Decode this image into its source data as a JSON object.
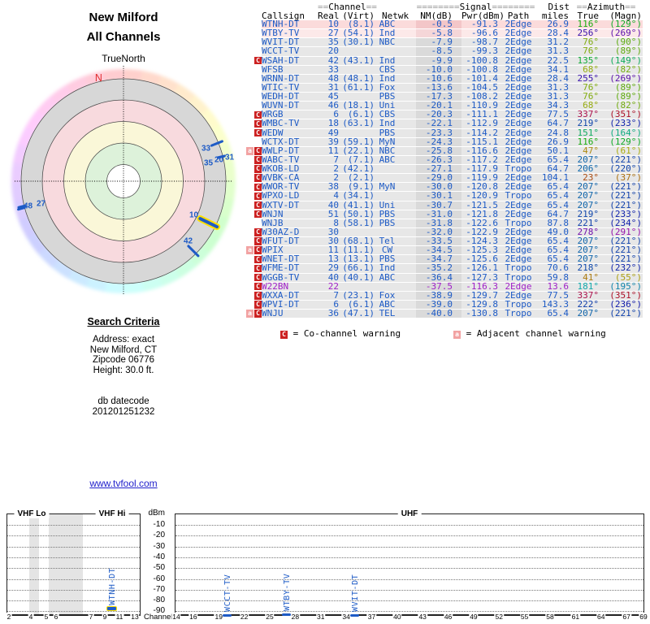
{
  "title": {
    "line1": "New Milford",
    "line2": "All Channels"
  },
  "radar": {
    "north_label": "TrueNorth",
    "magnetic_north_label": "N"
  },
  "search": {
    "heading": "Search Criteria",
    "lines": [
      "Address: exact",
      "New Milford, CT",
      "Zipcode 06776",
      "Height: 30.0 ft."
    ],
    "db_lines": [
      "db datecode",
      "201201251232"
    ]
  },
  "link": {
    "text": "www.tvfool.com"
  },
  "legend": {
    "co_symbol": "C",
    "co_text": "= Co-channel warning",
    "adj_symbol": "a",
    "adj_text": "= Adjacent channel warning"
  },
  "table": {
    "group_headers": {
      "channel": {
        "pre": "==",
        "word": "Channel",
        "post": "=="
      },
      "signal": {
        "pre": "========",
        "word": "Signal",
        "post": "========"
      },
      "dist": "Dist",
      "azimuth": {
        "pre": "==",
        "word": "Azimuth",
        "post": "=="
      }
    },
    "columns": {
      "callsign": "Callsign",
      "real": "Real",
      "virt": "(Virt)",
      "netwk": "Netwk",
      "nm": "NM(dB)",
      "pwr": "Pwr(dBm)",
      "path": "Path",
      "miles": "miles",
      "true": "True",
      "magn": "(Magn)"
    }
  },
  "colors": {
    "row_text": "#1E5BC6",
    "analog_text": "#A020C8",
    "row_bg": "#E7E7E7",
    "row_bg_nm": "#DADADA",
    "strong1_bg": "#FBDBDB",
    "strong1_bg_nm": "#F3C6C8",
    "strong2_bg": "#FCE9E9",
    "strong2_bg_nm": "#F5D6D8",
    "warn_c": "#CC2222",
    "warn_a": "#F2A2A2",
    "link": "#2222CC",
    "bar_blue": "#1E5BC6",
    "highlight": "#FFE000",
    "north_red": "#E03030"
  },
  "chart_data": [
    {
      "type": "table",
      "title": "channel list",
      "rows": [
        {
          "warn": "",
          "call": "WTNH-DT",
          "real": "10",
          "virt": "8.1",
          "net": "ABC",
          "nm": "-0.5",
          "pwr": "-91.3",
          "path": "2Edge",
          "mi": "26.9",
          "az": 116,
          "mag": 129,
          "bg": "s1"
        },
        {
          "warn": "",
          "call": "WTBY-TV",
          "real": "27",
          "virt": "54.1",
          "net": "Ind",
          "nm": "-5.8",
          "pwr": "-96.6",
          "path": "2Edge",
          "mi": "28.4",
          "az": 256,
          "mag": 269,
          "bg": "s2"
        },
        {
          "warn": "",
          "call": "WVIT-DT",
          "real": "35",
          "virt": "30.1",
          "net": "NBC",
          "nm": "-7.9",
          "pwr": "-98.7",
          "path": "2Edge",
          "mi": "31.2",
          "az": 76,
          "mag": 90
        },
        {
          "warn": "",
          "call": "WCCT-TV",
          "real": "20",
          "virt": "",
          "net": "",
          "nm": "-8.5",
          "pwr": "-99.3",
          "path": "2Edge",
          "mi": "31.3",
          "az": 76,
          "mag": 89
        },
        {
          "warn": "C",
          "call": "WSAH-DT",
          "real": "42",
          "virt": "43.1",
          "net": "Ind",
          "nm": "-9.9",
          "pwr": "-100.8",
          "path": "2Edge",
          "mi": "22.5",
          "az": 135,
          "mag": 149
        },
        {
          "warn": "",
          "call": "WFSB",
          "real": "33",
          "virt": "",
          "net": "CBS",
          "nm": "-10.0",
          "pwr": "-100.8",
          "path": "2Edge",
          "mi": "34.1",
          "az": 68,
          "mag": 82
        },
        {
          "warn": "",
          "call": "WRNN-DT",
          "real": "48",
          "virt": "48.1",
          "net": "Ind",
          "nm": "-10.6",
          "pwr": "-101.4",
          "path": "2Edge",
          "mi": "28.4",
          "az": 255,
          "mag": 269
        },
        {
          "warn": "",
          "call": "WTIC-TV",
          "real": "31",
          "virt": "61.1",
          "net": "Fox",
          "nm": "-13.6",
          "pwr": "-104.5",
          "path": "2Edge",
          "mi": "31.3",
          "az": 76,
          "mag": 89
        },
        {
          "warn": "",
          "call": "WEDH-DT",
          "real": "45",
          "virt": "",
          "net": "PBS",
          "nm": "-17.3",
          "pwr": "-108.2",
          "path": "2Edge",
          "mi": "31.3",
          "az": 76,
          "mag": 89
        },
        {
          "warn": "",
          "call": "WUVN-DT",
          "real": "46",
          "virt": "18.1",
          "net": "Uni",
          "nm": "-20.1",
          "pwr": "-110.9",
          "path": "2Edge",
          "mi": "34.3",
          "az": 68,
          "mag": 82
        },
        {
          "warn": "C",
          "call": "WRGB",
          "real": "6",
          "virt": "6.1",
          "net": "CBS",
          "nm": "-20.3",
          "pwr": "-111.1",
          "path": "2Edge",
          "mi": "77.5",
          "az": 337,
          "mag": 351
        },
        {
          "warn": "C",
          "call": "WMBC-TV",
          "real": "18",
          "virt": "63.1",
          "net": "Ind",
          "nm": "-22.1",
          "pwr": "-112.9",
          "path": "2Edge",
          "mi": "64.7",
          "az": 219,
          "mag": 233
        },
        {
          "warn": "C",
          "call": "WEDW",
          "real": "49",
          "virt": "",
          "net": "PBS",
          "nm": "-23.3",
          "pwr": "-114.2",
          "path": "2Edge",
          "mi": "24.8",
          "az": 151,
          "mag": 164
        },
        {
          "warn": "",
          "call": "WCTX-DT",
          "real": "39",
          "virt": "59.1",
          "net": "MyN",
          "nm": "-24.3",
          "pwr": "-115.1",
          "path": "2Edge",
          "mi": "26.9",
          "az": 116,
          "mag": 129
        },
        {
          "warn": "aC",
          "call": "WWLP-DT",
          "real": "11",
          "virt": "22.1",
          "net": "NBC",
          "nm": "-25.8",
          "pwr": "-116.6",
          "path": "2Edge",
          "mi": "50.1",
          "az": 47,
          "mag": 61
        },
        {
          "warn": "C",
          "call": "WABC-TV",
          "real": "7",
          "virt": "7.1",
          "net": "ABC",
          "nm": "-26.3",
          "pwr": "-117.2",
          "path": "2Edge",
          "mi": "65.4",
          "az": 207,
          "mag": 221
        },
        {
          "warn": "C",
          "call": "WKOB-LD",
          "real": "2",
          "virt": "42.1",
          "net": "",
          "nm": "-27.1",
          "pwr": "-117.9",
          "path": "Tropo",
          "mi": "64.7",
          "az": 206,
          "mag": 220
        },
        {
          "warn": "C",
          "call": "WVBK-CA",
          "real": "2",
          "virt": "2.1",
          "net": "",
          "nm": "-29.0",
          "pwr": "-119.9",
          "path": "2Edge",
          "mi": "104.1",
          "az": 23,
          "mag": 37
        },
        {
          "warn": "C",
          "call": "WWOR-TV",
          "real": "38",
          "virt": "9.1",
          "net": "MyN",
          "nm": "-30.0",
          "pwr": "-120.8",
          "path": "2Edge",
          "mi": "65.4",
          "az": 207,
          "mag": 221
        },
        {
          "warn": "C",
          "call": "WPXO-LD",
          "real": "4",
          "virt": "34.1",
          "net": "",
          "nm": "-30.1",
          "pwr": "-120.9",
          "path": "Tropo",
          "mi": "65.4",
          "az": 207,
          "mag": 221
        },
        {
          "warn": "C",
          "call": "WXTV-DT",
          "real": "40",
          "virt": "41.1",
          "net": "Uni",
          "nm": "-30.7",
          "pwr": "-121.5",
          "path": "2Edge",
          "mi": "65.4",
          "az": 207,
          "mag": 221
        },
        {
          "warn": "C",
          "call": "WNJN",
          "real": "51",
          "virt": "50.1",
          "net": "PBS",
          "nm": "-31.0",
          "pwr": "-121.8",
          "path": "2Edge",
          "mi": "64.7",
          "az": 219,
          "mag": 233
        },
        {
          "warn": "",
          "call": "WNJB",
          "real": "8",
          "virt": "58.1",
          "net": "PBS",
          "nm": "-31.8",
          "pwr": "-122.6",
          "path": "Tropo",
          "mi": "87.8",
          "az": 221,
          "mag": 234
        },
        {
          "warn": "C",
          "call": "W30AZ-D",
          "real": "30",
          "virt": "",
          "net": "",
          "nm": "-32.0",
          "pwr": "-122.9",
          "path": "2Edge",
          "mi": "49.0",
          "az": 278,
          "mag": 291
        },
        {
          "warn": "C",
          "call": "WFUT-DT",
          "real": "30",
          "virt": "68.1",
          "net": "Tel",
          "nm": "-33.5",
          "pwr": "-124.3",
          "path": "2Edge",
          "mi": "65.4",
          "az": 207,
          "mag": 221
        },
        {
          "warn": "aC",
          "call": "WPIX",
          "real": "11",
          "virt": "11.1",
          "net": "CW",
          "nm": "-34.5",
          "pwr": "-125.3",
          "path": "2Edge",
          "mi": "65.4",
          "az": 207,
          "mag": 221
        },
        {
          "warn": "C",
          "call": "WNET-DT",
          "real": "13",
          "virt": "13.1",
          "net": "PBS",
          "nm": "-34.7",
          "pwr": "-125.6",
          "path": "2Edge",
          "mi": "65.4",
          "az": 207,
          "mag": 221
        },
        {
          "warn": "C",
          "call": "WFME-DT",
          "real": "29",
          "virt": "66.1",
          "net": "Ind",
          "nm": "-35.2",
          "pwr": "-126.1",
          "path": "Tropo",
          "mi": "70.6",
          "az": 218,
          "mag": 232
        },
        {
          "warn": "C",
          "call": "WGGB-TV",
          "real": "40",
          "virt": "40.1",
          "net": "ABC",
          "nm": "-36.4",
          "pwr": "-127.3",
          "path": "Tropo",
          "mi": "59.8",
          "az": 41,
          "mag": 55
        },
        {
          "warn": "C",
          "call": "W22BN",
          "real": "22",
          "virt": "",
          "net": "",
          "nm": "-37.5",
          "pwr": "-116.3",
          "path": "2Edge",
          "mi": "13.6",
          "az": 181,
          "mag": 195,
          "analog": true
        },
        {
          "warn": "C",
          "call": "WXXA-DT",
          "real": "7",
          "virt": "23.1",
          "net": "Fox",
          "nm": "-38.9",
          "pwr": "-129.7",
          "path": "2Edge",
          "mi": "77.5",
          "az": 337,
          "mag": 351
        },
        {
          "warn": "C",
          "call": "WPVI-DT",
          "real": "6",
          "virt": "6.1",
          "net": "ABC",
          "nm": "-39.0",
          "pwr": "-129.8",
          "path": "Tropo",
          "mi": "143.3",
          "az": 222,
          "mag": 236
        },
        {
          "warn": "aC",
          "call": "WNJU",
          "real": "36",
          "virt": "47.1",
          "net": "TEL",
          "nm": "-40.0",
          "pwr": "-130.8",
          "path": "Tropo",
          "mi": "65.4",
          "az": 207,
          "mag": 221
        }
      ]
    },
    {
      "type": "radar",
      "title": "New Milford All Channels",
      "north_label": "TrueNorth",
      "magnetic_north": {
        "label": "N",
        "az": -13.5
      },
      "markers": [
        {
          "ch": "33",
          "az": 68,
          "r0": 117,
          "r1": 131,
          "label_xy": [
            248,
            176
          ]
        },
        {
          "ch": "35",
          "az": 76,
          "r0": 120,
          "r1": 128,
          "label_xy": [
            251,
            194
          ]
        },
        {
          "ch": "20",
          "az": 76,
          "r0": 120,
          "r1": 128,
          "label_xy": [
            264,
            190
          ]
        },
        {
          "ch": "31",
          "az": 76,
          "r0": 120,
          "r1": 128,
          "label_xy": [
            277,
            187
          ]
        },
        {
          "ch": "10",
          "az": 116,
          "r0": 105,
          "r1": 128,
          "label_xy": [
            233,
            258
          ],
          "highlight": true
        },
        {
          "ch": "42",
          "az": 135,
          "r0": 113,
          "r1": 130,
          "label_xy": [
            226,
            290
          ]
        },
        {
          "ch": "48",
          "az": 255,
          "r0": 126,
          "r1": 134,
          "label_xy": [
            29,
            247
          ]
        },
        {
          "ch": "27",
          "az": 256,
          "r0": 125,
          "r1": 133,
          "label_xy": [
            45,
            244
          ]
        }
      ]
    },
    {
      "type": "bar",
      "title": "signal spectrum",
      "ylabel": "dBm",
      "xlabel": "Channel",
      "yticks": [
        -10,
        -20,
        -30,
        -40,
        -50,
        -60,
        -70,
        -80,
        -90
      ],
      "bands": [
        {
          "label": "VHF Lo",
          "ticks": [
            2,
            4,
            5,
            6
          ]
        },
        {
          "label": "VHF Hi",
          "ticks": [
            7,
            9,
            11,
            13
          ]
        },
        {
          "label": "UHF",
          "ticks": [
            14,
            16,
            19,
            22,
            25,
            28,
            31,
            34,
            37,
            40,
            43,
            46,
            49,
            52,
            55,
            58,
            61,
            64,
            67,
            69
          ]
        }
      ],
      "bars": [
        {
          "call": "WTNH-DT",
          "ch": 10,
          "dbm": -91.3,
          "highlight": true
        },
        {
          "call": "WCCT-TV",
          "ch": 20,
          "dbm": -99.3
        },
        {
          "call": "WTBY-TV",
          "ch": 27,
          "dbm": -96.6
        },
        {
          "call": "WVIT-DT",
          "ch": 35,
          "dbm": -98.7
        }
      ]
    }
  ]
}
